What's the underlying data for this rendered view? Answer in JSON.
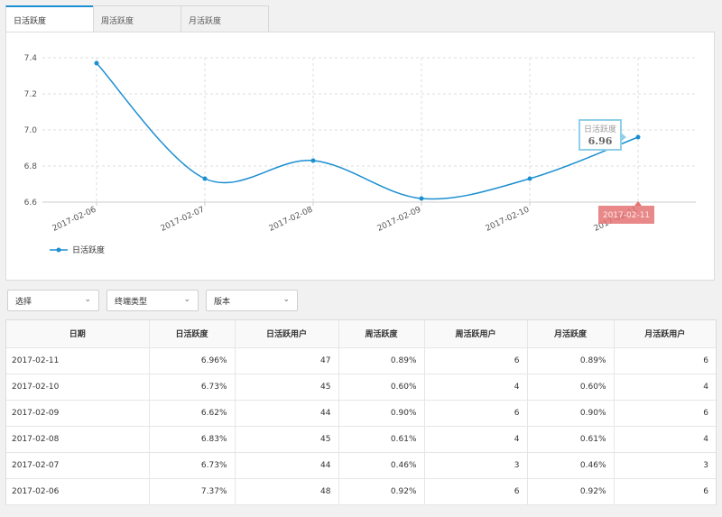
{
  "tabs": [
    "日活跃度",
    "周活跃度",
    "月活跃度"
  ],
  "colors": {
    "line": "#1b8fd1",
    "tooltip_border": "#8fd0e8",
    "marker": "#e57373"
  },
  "chart_data": {
    "type": "line",
    "x": [
      "2017-02-06",
      "2017-02-07",
      "2017-02-08",
      "2017-02-09",
      "2017-02-10",
      "2017-02-11"
    ],
    "series": [
      {
        "name": "日活跃度",
        "values": [
          7.37,
          6.73,
          6.83,
          6.62,
          6.73,
          6.96
        ]
      }
    ],
    "yticks": [
      "6.6",
      "6.8",
      "7.0",
      "7.2",
      "7.4"
    ],
    "ylim": [
      6.6,
      7.4
    ],
    "grid": true,
    "legend": "bottom-left",
    "tooltip": {
      "title": "日活跃度",
      "value": "6.96"
    },
    "marker_label": "2017-02-11"
  },
  "filters": [
    "选择",
    "终端类型",
    "版本"
  ],
  "table": {
    "headers": [
      "日期",
      "日活跃度",
      "日活跃用户",
      "周活跃度",
      "周活跃用户",
      "月活跃度",
      "月活跃用户"
    ],
    "rows": [
      [
        "2017-02-11",
        "6.96%",
        "47",
        "0.89%",
        "6",
        "0.89%",
        "6"
      ],
      [
        "2017-02-10",
        "6.73%",
        "45",
        "0.60%",
        "4",
        "0.60%",
        "4"
      ],
      [
        "2017-02-09",
        "6.62%",
        "44",
        "0.90%",
        "6",
        "0.90%",
        "6"
      ],
      [
        "2017-02-08",
        "6.83%",
        "45",
        "0.61%",
        "4",
        "0.61%",
        "4"
      ],
      [
        "2017-02-07",
        "6.73%",
        "44",
        "0.46%",
        "3",
        "0.46%",
        "3"
      ],
      [
        "2017-02-06",
        "7.37%",
        "48",
        "0.92%",
        "6",
        "0.92%",
        "6"
      ]
    ]
  }
}
